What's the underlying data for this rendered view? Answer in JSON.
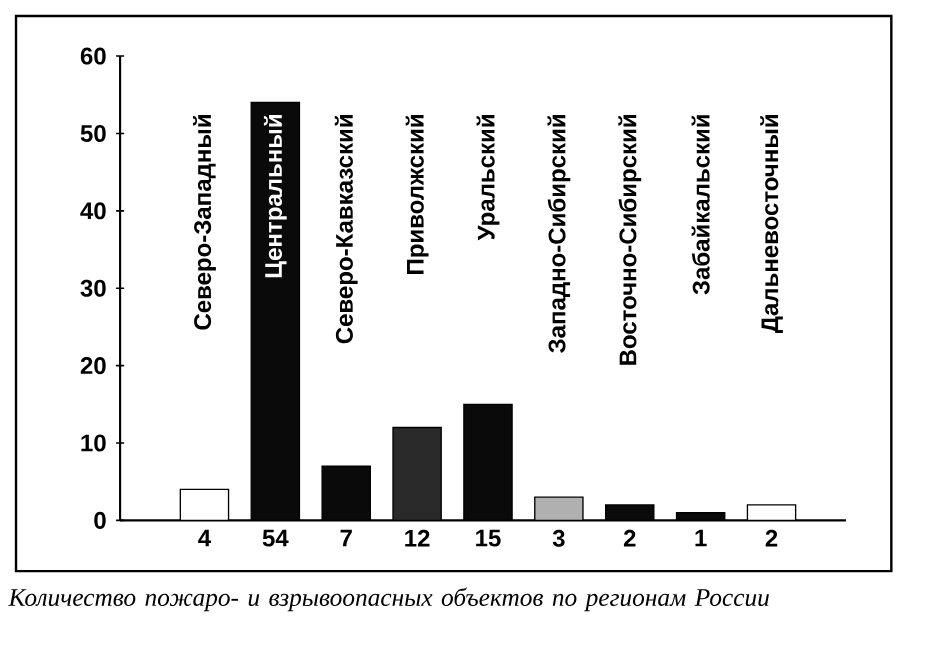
{
  "chart_data": {
    "type": "bar",
    "categories": [
      "Северо-Западный",
      "Центральный",
      "Северо-Кавказский",
      "Приволжский",
      "Уральский",
      "Западно-Сибирский",
      "Восточно-Сибирский",
      "Забайкальский",
      "Дальневосточный"
    ],
    "values": [
      4,
      54,
      7,
      12,
      15,
      3,
      2,
      1,
      2
    ],
    "colors": [
      "#ffffff",
      "#0a0a0a",
      "#0a0a0a",
      "#2a2a2a",
      "#0a0a0a",
      "#b0b0b0",
      "#0a0a0a",
      "#0a0a0a",
      "#ffffff"
    ],
    "ylim": [
      0,
      60
    ],
    "yticks": [
      0,
      10,
      20,
      30,
      40,
      50,
      60
    ],
    "data_labels": true,
    "annotations": [
      "*Количество пожаро- и взрывоопасных объектов по регионам России*"
    ]
  }
}
